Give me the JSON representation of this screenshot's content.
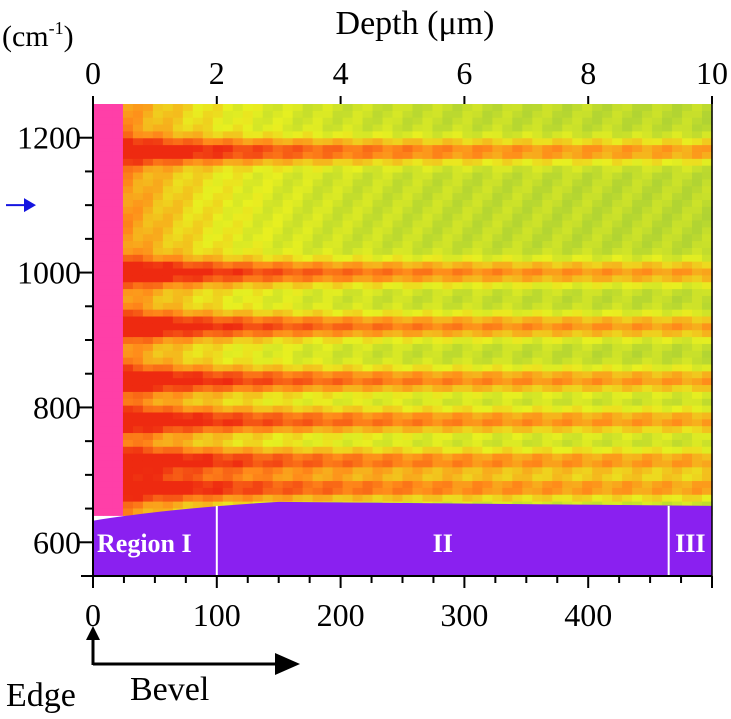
{
  "chart_data": {
    "type": "heatmap",
    "title": "",
    "top_axis": {
      "label": "Depth (μm)",
      "range": [
        0,
        10
      ],
      "ticks": [
        0,
        2,
        4,
        6,
        8,
        10
      ]
    },
    "bottom_axis": {
      "range": [
        0,
        500
      ],
      "ticks": [
        0,
        100,
        200,
        300,
        400
      ]
    },
    "y_axis": {
      "unit": "(cm",
      "unit_sup": "-1",
      "unit_close": ")",
      "range": [
        550,
        1250
      ],
      "ticks": [
        600,
        800,
        1000,
        1200
      ]
    },
    "marker_wavenumber": 1100,
    "band_centers": [
      1180,
      1000,
      920,
      840,
      780,
      720,
      680
    ],
    "substrate_boundary_wavenumber": 640,
    "regions": [
      {
        "label": "Region I",
        "x_start": 0,
        "x_end": 100
      },
      {
        "label": "II",
        "x_start": 100,
        "x_end": 465
      },
      {
        "label": "III",
        "x_start": 465,
        "x_end": 500
      }
    ],
    "annotations": {
      "edge": "Edge",
      "bevel": "Bevel"
    },
    "colors": {
      "substrate": "#8a20f0",
      "edge": "#ff3fa8",
      "high": "#ee2a10",
      "mid": "#ff8c1a",
      "low": "#e8f020",
      "lowest": "#9ac83a",
      "marker_arrow": "#1515e0"
    }
  }
}
